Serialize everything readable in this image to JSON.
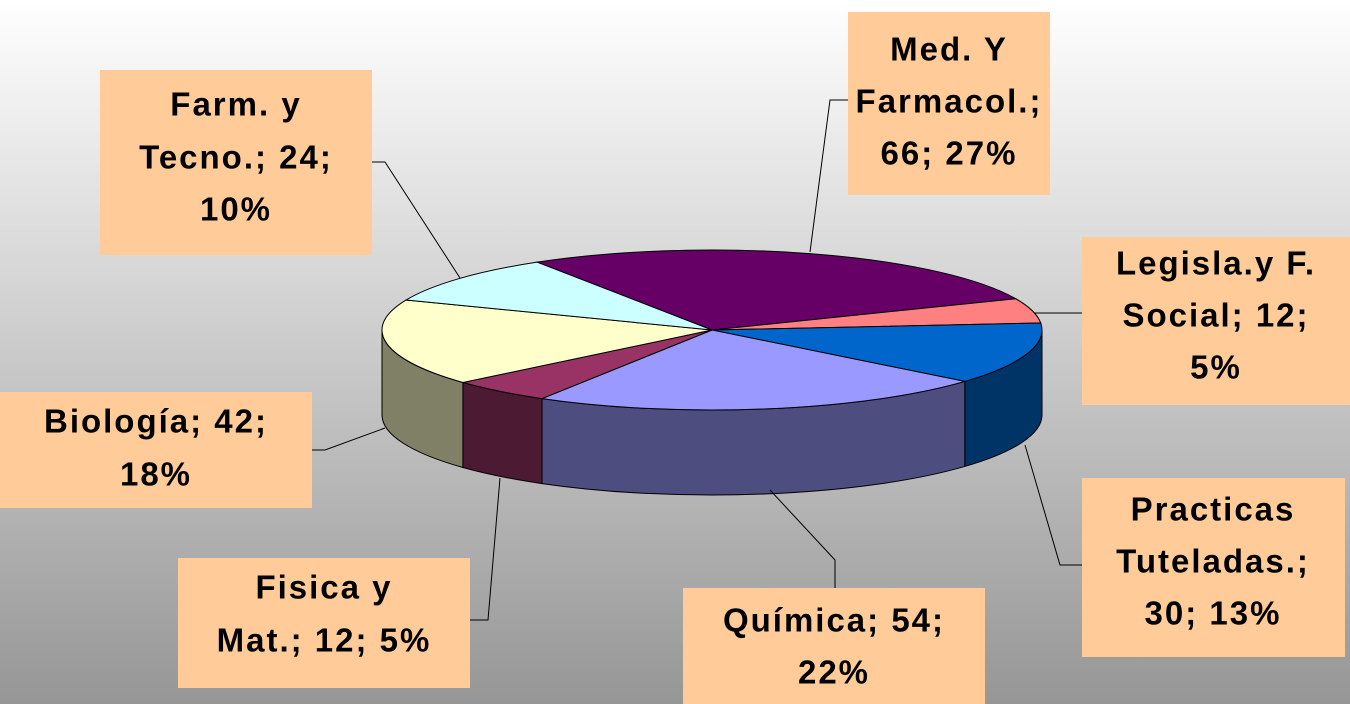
{
  "chart_data": {
    "type": "pie3d",
    "categories": [
      "Med. Y Farmacol.",
      "Legisla.y F. Social",
      "Practicas Tuteladas.",
      "Química",
      "Fisica y Mat.",
      "Biología",
      "Farm. y Tecno."
    ],
    "values": [
      66,
      12,
      30,
      54,
      12,
      42,
      24
    ],
    "labels": [
      [
        "Med. Y",
        "Farmacol.;",
        "66; 27%"
      ],
      [
        "Legisla.y F.",
        "Social; 12;",
        "5%"
      ],
      [
        "Practicas",
        "Tuteladas.;",
        "30; 13%"
      ],
      [
        "Química; 54;",
        "22%"
      ],
      [
        "Fisica y",
        "Mat.; 12; 5%"
      ],
      [
        "Biología; 42;",
        "18%"
      ],
      [
        "Farm. y",
        "Tecno.; 24;",
        "10%"
      ]
    ],
    "colors": [
      "#660066",
      "#ff8080",
      "#0066cc",
      "#9999ff",
      "#993366",
      "#ffffcc",
      "#ccffff"
    ]
  }
}
